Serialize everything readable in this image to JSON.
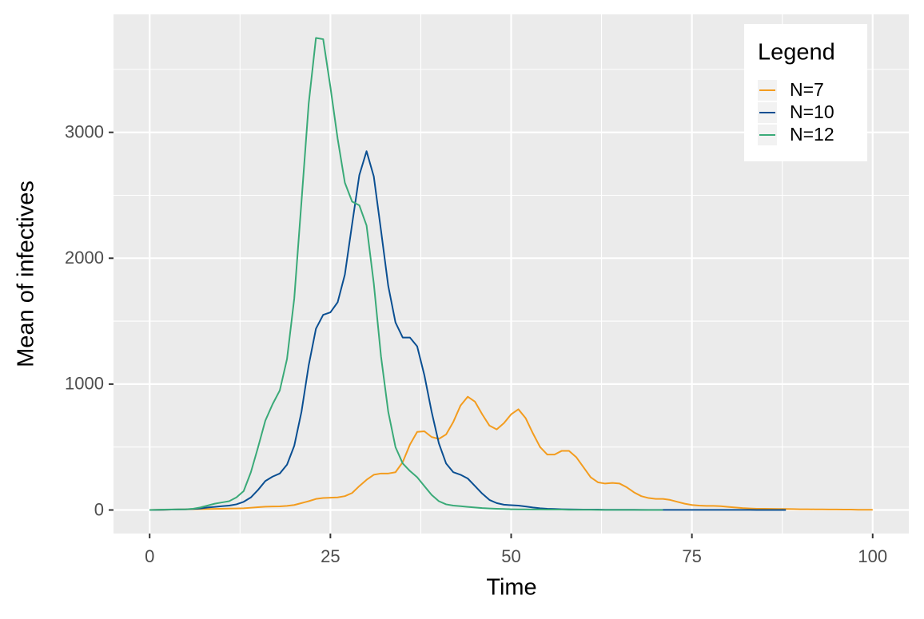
{
  "chart_data": {
    "type": "line",
    "x_label": "Time",
    "y_label": "Mean of infectives",
    "legend_title": "Legend",
    "legend_position": "top-right",
    "xlim": [
      -5,
      105
    ],
    "ylim": [
      -187,
      3937
    ],
    "xticks": [
      0,
      25,
      50,
      75,
      100
    ],
    "yticks": [
      0,
      1000,
      2000,
      3000
    ],
    "xminor": [
      12.5,
      37.5,
      62.5,
      87.5
    ],
    "yminor": [
      500,
      1500,
      2500,
      3500
    ],
    "grid": true,
    "series": [
      {
        "name": "N=7",
        "color": "#f39c1e",
        "x": [
          0,
          1,
          2,
          3,
          4,
          5,
          6,
          7,
          8,
          9,
          10,
          11,
          12,
          13,
          14,
          15,
          16,
          17,
          18,
          19,
          20,
          21,
          22,
          23,
          24,
          25,
          26,
          27,
          28,
          29,
          30,
          31,
          32,
          33,
          34,
          35,
          36,
          37,
          38,
          39,
          40,
          41,
          42,
          43,
          44,
          45,
          46,
          47,
          48,
          49,
          50,
          51,
          52,
          53,
          54,
          55,
          56,
          57,
          58,
          59,
          60,
          61,
          62,
          63,
          64,
          65,
          66,
          67,
          68,
          69,
          70,
          71,
          72,
          73,
          74,
          75,
          76,
          77,
          78,
          79,
          80,
          81,
          82,
          83,
          84,
          85,
          86,
          87,
          88,
          89,
          90,
          91,
          92,
          93,
          94,
          95,
          96,
          97,
          98,
          99,
          100
        ],
        "values": [
          0,
          1,
          2,
          3,
          4,
          5,
          6,
          7,
          8,
          9,
          10,
          11,
          12,
          14,
          18,
          22,
          26,
          28,
          29,
          33,
          40,
          55,
          70,
          88,
          95,
          98,
          100,
          110,
          135,
          190,
          240,
          280,
          290,
          290,
          300,
          380,
          520,
          620,
          625,
          580,
          565,
          600,
          700,
          830,
          900,
          860,
          760,
          670,
          640,
          690,
          760,
          800,
          730,
          610,
          500,
          440,
          440,
          470,
          470,
          420,
          340,
          260,
          220,
          210,
          215,
          210,
          180,
          140,
          110,
          95,
          88,
          88,
          80,
          65,
          50,
          40,
          35,
          33,
          33,
          30,
          25,
          20,
          15,
          12,
          10,
          10,
          9,
          8,
          8,
          7,
          6,
          6,
          5,
          5,
          4,
          4,
          3,
          3,
          2,
          2,
          2
        ]
      },
      {
        "name": "N=10",
        "color": "#0a4f92",
        "x": [
          0,
          1,
          2,
          3,
          4,
          5,
          6,
          7,
          8,
          9,
          10,
          11,
          12,
          13,
          14,
          15,
          16,
          17,
          18,
          19,
          20,
          21,
          22,
          23,
          24,
          25,
          26,
          27,
          28,
          29,
          30,
          31,
          32,
          33,
          34,
          35,
          36,
          37,
          38,
          39,
          40,
          41,
          42,
          43,
          44,
          45,
          46,
          47,
          48,
          49,
          50,
          51,
          52,
          53,
          54,
          55,
          56,
          57,
          58,
          59,
          60,
          61,
          62,
          63,
          64,
          65,
          66,
          67,
          68,
          69,
          70,
          71,
          72,
          73,
          74,
          75,
          76,
          77,
          78,
          79,
          80,
          81,
          82,
          83,
          84,
          85,
          86,
          87,
          88
        ],
        "values": [
          0,
          1,
          2,
          3,
          4,
          5,
          8,
          12,
          20,
          25,
          30,
          35,
          45,
          65,
          100,
          160,
          230,
          265,
          290,
          360,
          510,
          780,
          1150,
          1440,
          1550,
          1570,
          1650,
          1870,
          2270,
          2660,
          2850,
          2650,
          2220,
          1780,
          1490,
          1370,
          1370,
          1300,
          1070,
          780,
          530,
          370,
          300,
          280,
          250,
          190,
          130,
          80,
          55,
          42,
          38,
          35,
          28,
          20,
          14,
          10,
          8,
          6,
          5,
          4,
          3,
          3,
          3,
          2,
          2,
          2,
          2,
          2,
          1,
          1,
          1,
          1,
          1,
          1,
          1,
          1,
          1,
          1,
          1,
          1,
          1,
          1,
          1,
          1,
          0,
          0,
          0,
          0,
          0
        ]
      },
      {
        "name": "N=12",
        "color": "#3aaa78",
        "x": [
          0,
          1,
          2,
          3,
          4,
          5,
          6,
          7,
          8,
          9,
          10,
          11,
          12,
          13,
          14,
          15,
          16,
          17,
          18,
          19,
          20,
          21,
          22,
          23,
          24,
          25,
          26,
          27,
          28,
          29,
          30,
          31,
          32,
          33,
          34,
          35,
          36,
          37,
          38,
          39,
          40,
          41,
          42,
          43,
          44,
          45,
          46,
          47,
          48,
          49,
          50,
          51,
          52,
          53,
          54,
          55,
          56,
          57,
          58,
          59,
          60,
          61,
          62,
          63,
          64,
          65,
          66,
          67,
          68,
          69,
          70,
          71
        ],
        "values": [
          0,
          2,
          3,
          4,
          5,
          6,
          10,
          20,
          35,
          50,
          60,
          70,
          100,
          150,
          300,
          500,
          710,
          840,
          950,
          1200,
          1680,
          2450,
          3230,
          3750,
          3740,
          3360,
          2950,
          2600,
          2450,
          2420,
          2260,
          1800,
          1220,
          780,
          500,
          370,
          310,
          260,
          190,
          120,
          70,
          45,
          35,
          30,
          25,
          20,
          15,
          12,
          10,
          8,
          6,
          5,
          5,
          4,
          4,
          3,
          3,
          3,
          2,
          2,
          2,
          2,
          1,
          1,
          1,
          1,
          1,
          1,
          1,
          0,
          0,
          0
        ]
      }
    ]
  }
}
